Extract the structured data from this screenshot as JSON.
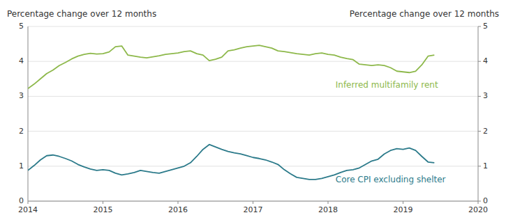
{
  "chart_data": {
    "type": "line",
    "ylabel": "Percentage change over 12 months",
    "y2label": "Percentage change over 12 months",
    "xlim": [
      2014.0,
      2020.0
    ],
    "xticks": [
      2014,
      2015,
      2016,
      2017,
      2018,
      2019,
      2020
    ],
    "ylim": [
      0,
      5
    ],
    "yticks": [
      0,
      1,
      2,
      3,
      4,
      5
    ],
    "y2lim": [
      0,
      5
    ],
    "y2ticks": [
      0,
      1,
      2,
      3,
      4,
      5
    ],
    "grid": true,
    "x": [
      2014.0,
      2014.083,
      2014.167,
      2014.25,
      2014.333,
      2014.417,
      2014.5,
      2014.583,
      2014.667,
      2014.75,
      2014.833,
      2014.917,
      2015.0,
      2015.083,
      2015.167,
      2015.25,
      2015.333,
      2015.417,
      2015.5,
      2015.583,
      2015.667,
      2015.75,
      2015.833,
      2015.917,
      2016.0,
      2016.083,
      2016.167,
      2016.25,
      2016.333,
      2016.417,
      2016.5,
      2016.583,
      2016.667,
      2016.75,
      2016.833,
      2016.917,
      2017.0,
      2017.083,
      2017.167,
      2017.25,
      2017.333,
      2017.417,
      2017.5,
      2017.583,
      2017.667,
      2017.75,
      2017.833,
      2017.917,
      2018.0,
      2018.083,
      2018.167,
      2018.25,
      2018.333,
      2018.417,
      2018.5,
      2018.583,
      2018.667,
      2018.75,
      2018.833,
      2018.917,
      2019.0,
      2019.083,
      2019.167,
      2019.25,
      2019.333,
      2019.417
    ],
    "series": [
      {
        "color": "#8db84a",
        "values": [
          3.22,
          3.35,
          3.5,
          3.65,
          3.75,
          3.88,
          3.97,
          4.07,
          4.15,
          4.2,
          4.23,
          4.21,
          4.22,
          4.27,
          4.42,
          4.44,
          4.18,
          4.15,
          4.12,
          4.1,
          4.13,
          4.16,
          4.2,
          4.22,
          4.24,
          4.28,
          4.3,
          4.22,
          4.18,
          4.02,
          4.06,
          4.12,
          4.3,
          4.33,
          4.38,
          4.42,
          4.44,
          4.46,
          4.42,
          4.38,
          4.3,
          4.28,
          4.25,
          4.22,
          4.2,
          4.18,
          4.22,
          4.24,
          4.2,
          4.18,
          4.12,
          4.08,
          4.05,
          3.92,
          3.9,
          3.88,
          3.9,
          3.88,
          3.82,
          3.72,
          3.7,
          3.68,
          3.72,
          3.9,
          4.15,
          4.18
        ]
      },
      {
        "color": "#2b7a8a",
        "values": [
          0.88,
          1.02,
          1.18,
          1.3,
          1.32,
          1.28,
          1.22,
          1.15,
          1.05,
          0.98,
          0.92,
          0.88,
          0.9,
          0.88,
          0.8,
          0.75,
          0.78,
          0.82,
          0.88,
          0.85,
          0.82,
          0.8,
          0.85,
          0.9,
          0.95,
          1.0,
          1.1,
          1.28,
          1.48,
          1.62,
          1.55,
          1.48,
          1.42,
          1.38,
          1.35,
          1.3,
          1.25,
          1.22,
          1.18,
          1.12,
          1.05,
          0.9,
          0.78,
          0.68,
          0.65,
          0.62,
          0.62,
          0.65,
          0.7,
          0.75,
          0.82,
          0.88,
          0.9,
          0.95,
          1.05,
          1.15,
          1.2,
          1.35,
          1.45,
          1.5,
          1.48,
          1.52,
          1.45,
          1.28,
          1.12,
          1.1
        ]
      }
    ],
    "annotations": [
      {
        "text": "Inferred multifamily rent",
        "x": 2018.1,
        "y": 3.42,
        "color": "#8db84a"
      },
      {
        "text": "Core CPI excluding shelter",
        "x": 2018.1,
        "y": 0.72,
        "color": "#2b7a8a"
      }
    ]
  }
}
